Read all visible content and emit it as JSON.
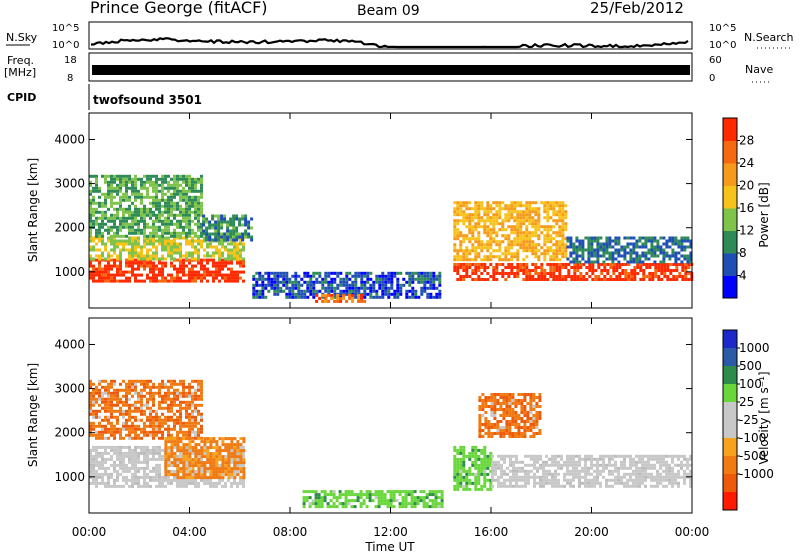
{
  "header": {
    "station": "Prince George (fitACF)",
    "beam": "Beam 09",
    "date": "25/Feb/2012"
  },
  "strips": {
    "nsky": {
      "label": "N.Sky",
      "ticks": [
        "10^5",
        "10^0"
      ],
      "right_label": "N.Search",
      "right_ticks": [
        "10^5",
        "10^0"
      ]
    },
    "freq": {
      "label_top": "Freq.",
      "label_bottom": "[MHz]",
      "ticks": [
        "18",
        "8"
      ],
      "right_label": "Nave",
      "right_ticks": [
        "60",
        "0"
      ]
    },
    "cpid": {
      "label": "CPID",
      "value": "twofsound 3501"
    }
  },
  "colors": {
    "power": [
      "#0000ff",
      "#1f4fb4",
      "#2e8b57",
      "#7fc34a",
      "#f7c21a",
      "#f59a1a",
      "#f56a10",
      "#ff2a00"
    ],
    "velocity": [
      "#1c28c8",
      "#2a5aa8",
      "#2e8c4a",
      "#69d63a",
      "#c8c8c8",
      "#c8c8c8",
      "#f7a21c",
      "#f27a12",
      "#ee5a0c",
      "#ff1a00"
    ]
  },
  "chart_data": [
    {
      "type": "heatmap",
      "quantity": "power",
      "xlabel": "",
      "ylabel": "Slant Range [km]",
      "xlim": [
        0,
        24
      ],
      "ylim": [
        180,
        4600
      ],
      "y_ticks": [
        1000,
        2000,
        3000,
        4000
      ],
      "colorbar_label": "Power [dB]",
      "colorbar_ticks": [
        4,
        8,
        12,
        16,
        20,
        24,
        28
      ],
      "colorbar_range": [
        0,
        32
      ],
      "regions": [
        {
          "x": [
            0.0,
            6.2
          ],
          "y": [
            800,
            1300
          ],
          "level": 30
        },
        {
          "x": [
            0.0,
            6.2
          ],
          "y": [
            1300,
            1800
          ],
          "level": 16
        },
        {
          "x": [
            0.0,
            4.5
          ],
          "y": [
            1800,
            3200
          ],
          "level": 12
        },
        {
          "x": [
            4.5,
            6.5
          ],
          "y": [
            1700,
            2300
          ],
          "level": 10
        },
        {
          "x": [
            6.5,
            14.0
          ],
          "y": [
            400,
            1000
          ],
          "level": 6
        },
        {
          "x": [
            9.0,
            11.0
          ],
          "y": [
            350,
            500
          ],
          "level": 26
        },
        {
          "x": [
            14.5,
            24.0
          ],
          "y": [
            800,
            1200
          ],
          "level": 30
        },
        {
          "x": [
            14.5,
            19.0
          ],
          "y": [
            1300,
            2600
          ],
          "level": 20
        },
        {
          "x": [
            19.0,
            24.0
          ],
          "y": [
            1200,
            1800
          ],
          "level": 8
        }
      ]
    },
    {
      "type": "heatmap",
      "quantity": "velocity",
      "xlabel": "Time UT",
      "ylabel": "Slant Range [km]",
      "xlim": [
        0,
        24
      ],
      "ylim": [
        180,
        4600
      ],
      "x_ticks": [
        "00:00",
        "04:00",
        "08:00",
        "12:00",
        "16:00",
        "20:00",
        "00:00"
      ],
      "y_ticks": [
        1000,
        2000,
        3000,
        4000
      ],
      "colorbar_label": "Velocity [m s⁻¹]",
      "colorbar_ticks": [
        "1000",
        "500",
        "100",
        "25",
        "-25",
        "-100",
        "-500",
        "-1000"
      ],
      "regions": [
        {
          "x": [
            0.0,
            6.2
          ],
          "y": [
            800,
            1700
          ],
          "class": "ground",
          "level": 0
        },
        {
          "x": [
            0.0,
            4.5
          ],
          "y": [
            1900,
            3200
          ],
          "class": "neg",
          "level": -150
        },
        {
          "x": [
            3.0,
            6.2
          ],
          "y": [
            1000,
            1900
          ],
          "class": "neg",
          "level": -400
        },
        {
          "x": [
            8.5,
            14.0
          ],
          "y": [
            350,
            700
          ],
          "class": "pos",
          "level": 80
        },
        {
          "x": [
            14.5,
            16.0
          ],
          "y": [
            700,
            1700
          ],
          "class": "pos",
          "level": 80
        },
        {
          "x": [
            15.5,
            18.0
          ],
          "y": [
            1900,
            2900
          ],
          "class": "neg",
          "level": -150
        },
        {
          "x": [
            16.0,
            24.0
          ],
          "y": [
            800,
            1500
          ],
          "class": "ground",
          "level": 0
        }
      ]
    }
  ],
  "time_axis": {
    "label": "Time UT",
    "ticks": [
      "00:00",
      "04:00",
      "08:00",
      "12:00",
      "16:00",
      "20:00",
      "00:00"
    ]
  }
}
